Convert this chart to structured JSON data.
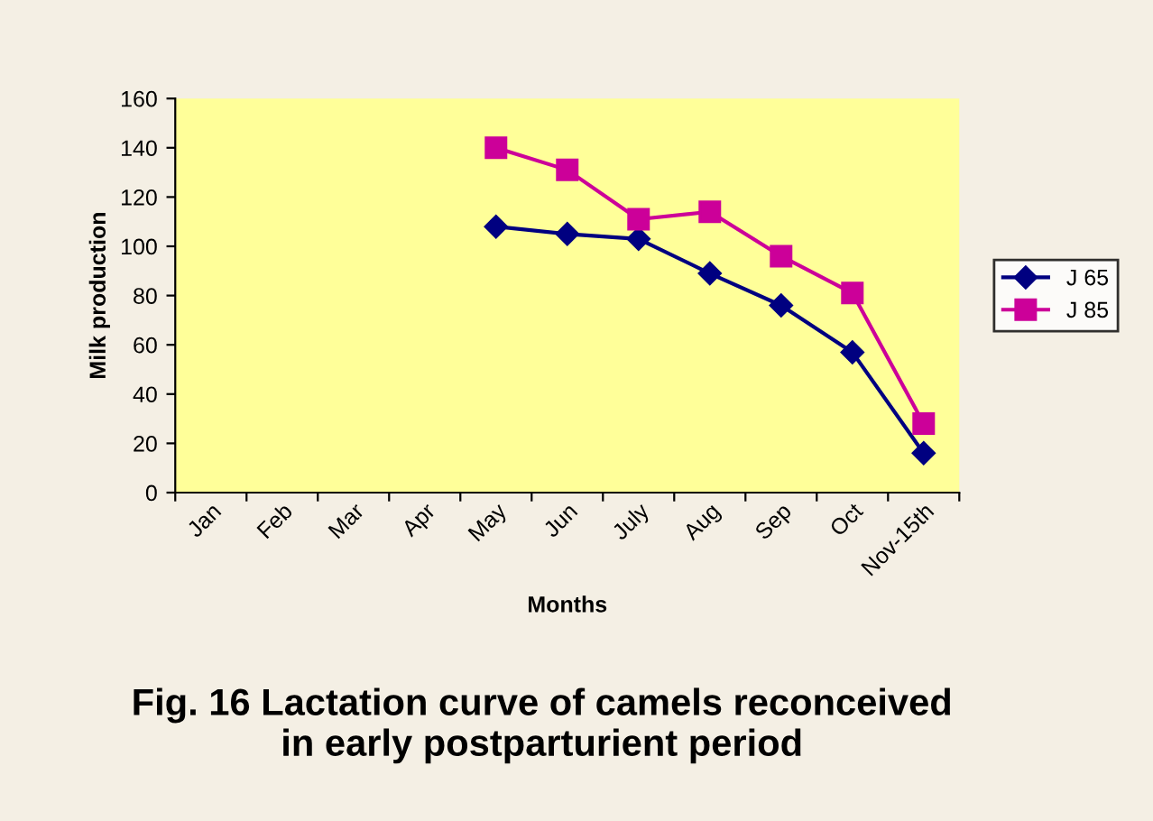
{
  "chart_data": {
    "type": "line",
    "title": "Fig. 16 Lactation curve of camels reconceived\nin early postparturient period",
    "xlabel": "Months",
    "ylabel": "Milk production",
    "categories": [
      "Jan",
      "Feb",
      "Mar",
      "Apr",
      "May",
      "Jun",
      "July",
      "Aug",
      "Sep",
      "Oct",
      "Nov-15th"
    ],
    "series": [
      {
        "name": "J 65",
        "color": "#000080",
        "marker": "diamond",
        "values": [
          null,
          null,
          null,
          null,
          108,
          105,
          103,
          89,
          76,
          57,
          16
        ]
      },
      {
        "name": "J 85",
        "color": "#cc0099",
        "marker": "square",
        "values": [
          null,
          null,
          null,
          null,
          140,
          131,
          111,
          114,
          96,
          81,
          28
        ]
      }
    ],
    "ylim": [
      0,
      160
    ],
    "yticks": [
      0,
      20,
      40,
      60,
      80,
      100,
      120,
      140,
      160
    ],
    "grid": false,
    "legend": "right"
  }
}
